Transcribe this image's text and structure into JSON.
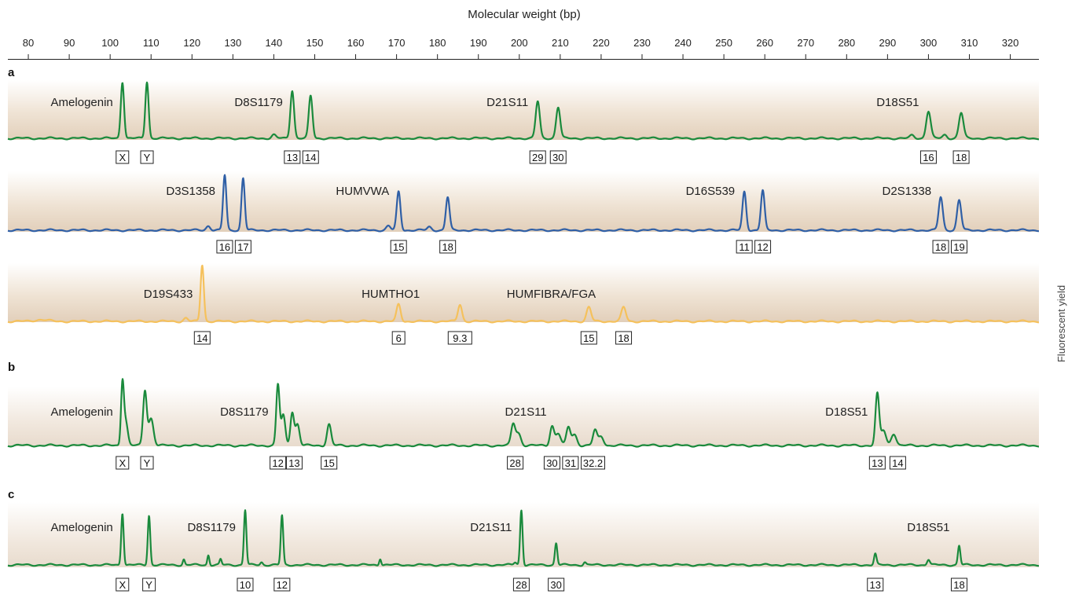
{
  "chart_data": {
    "type": "line",
    "title": "",
    "xlabel": "Molecular weight (bp)",
    "ylabel": "Fluorescent yield",
    "xlim": [
      75,
      327
    ],
    "xticks": [
      80,
      90,
      100,
      110,
      120,
      130,
      140,
      150,
      160,
      170,
      180,
      190,
      200,
      210,
      220,
      230,
      240,
      250,
      260,
      270,
      280,
      290,
      300,
      310,
      320
    ],
    "grid": false,
    "panels": [
      {
        "label": "a",
        "tracks": [
          {
            "color": "#1a8a3c",
            "band_color": "#e6d3bd",
            "peaks": [
              [
                103,
                1.0,
                0.4
              ],
              [
                109,
                1.0,
                0.4
              ],
              [
                140,
                0.06,
                0.5
              ],
              [
                144.5,
                0.85,
                0.45
              ],
              [
                149,
                0.75,
                0.45
              ],
              [
                204.5,
                0.65,
                0.5
              ],
              [
                209.5,
                0.55,
                0.5
              ],
              [
                296,
                0.05,
                0.5
              ],
              [
                300,
                0.48,
                0.55
              ],
              [
                304,
                0.06,
                0.5
              ],
              [
                308,
                0.45,
                0.55
              ]
            ],
            "loci": [
              {
                "name": "Amelogenin",
                "x": 103
              },
              {
                "name": "D8S1179",
                "x": 144.5
              },
              {
                "name": "D21S11",
                "x": 204.5
              },
              {
                "name": "D18S51",
                "x": 300
              }
            ],
            "alleles": [
              {
                "text": "X",
                "x": 103
              },
              {
                "text": "Y",
                "x": 109
              },
              {
                "text": "13",
                "x": 144.5
              },
              {
                "text": "14",
                "x": 149
              },
              {
                "text": "29",
                "x": 204.5
              },
              {
                "text": "30",
                "x": 209.5
              },
              {
                "text": "16",
                "x": 300
              },
              {
                "text": "18",
                "x": 308
              }
            ]
          },
          {
            "color": "#2f5fa6",
            "band_color": "#e6d3bd",
            "peaks": [
              [
                124,
                0.08,
                0.5
              ],
              [
                128,
                1.0,
                0.4
              ],
              [
                132.5,
                0.95,
                0.4
              ],
              [
                168,
                0.08,
                0.5
              ],
              [
                170.5,
                0.7,
                0.45
              ],
              [
                178,
                0.06,
                0.5
              ],
              [
                182.5,
                0.6,
                0.45
              ],
              [
                255,
                0.7,
                0.45
              ],
              [
                259.5,
                0.72,
                0.45
              ],
              [
                303,
                0.6,
                0.5
              ],
              [
                307.5,
                0.55,
                0.5
              ]
            ],
            "loci": [
              {
                "name": "D3S1358",
                "x": 128
              },
              {
                "name": "HUMVWA",
                "x": 170.5
              },
              {
                "name": "D16S539",
                "x": 255
              },
              {
                "name": "D2S1338",
                "x": 303
              }
            ],
            "alleles": [
              {
                "text": "16",
                "x": 128
              },
              {
                "text": "17",
                "x": 132.5
              },
              {
                "text": "15",
                "x": 170.5
              },
              {
                "text": "18",
                "x": 182.5
              },
              {
                "text": "11",
                "x": 255
              },
              {
                "text": "12",
                "x": 259.5
              },
              {
                "text": "18",
                "x": 303
              },
              {
                "text": "19",
                "x": 307.5
              }
            ]
          },
          {
            "color": "#f5c15c",
            "band_color": "#e6d3bd",
            "peaks": [
              [
                83,
                0.03,
                1.5
              ],
              [
                118.5,
                0.06,
                0.5
              ],
              [
                122.5,
                1.0,
                0.4
              ],
              [
                170.5,
                0.3,
                0.5
              ],
              [
                185.5,
                0.3,
                0.5
              ],
              [
                217,
                0.25,
                0.55
              ],
              [
                225.5,
                0.25,
                0.55
              ]
            ],
            "loci": [
              {
                "name": "D19S433",
                "x": 122.5
              },
              {
                "name": "HUMTHO1",
                "x": 178
              },
              {
                "name": "HUMFIBRA/FGA",
                "x": 221
              }
            ],
            "alleles": [
              {
                "text": "14",
                "x": 122.5
              },
              {
                "text": "6",
                "x": 170.5
              },
              {
                "text": "9.3",
                "x": 185.5
              },
              {
                "text": "15",
                "x": 217
              },
              {
                "text": "18",
                "x": 225.5
              }
            ]
          }
        ]
      },
      {
        "label": "b",
        "tracks": [
          {
            "color": "#1a8a3c",
            "band_color": "#e9ddd1",
            "peaks": [
              [
                103,
                1.0,
                0.35
              ],
              [
                103.8,
                0.4,
                0.5
              ],
              [
                108.5,
                0.9,
                0.45
              ],
              [
                110,
                0.45,
                0.6
              ],
              [
                141,
                1.0,
                0.4
              ],
              [
                142.3,
                0.5,
                0.5
              ],
              [
                144.5,
                0.55,
                0.45
              ],
              [
                145.8,
                0.35,
                0.5
              ],
              [
                153.5,
                0.35,
                0.5
              ],
              [
                198.5,
                0.35,
                0.5
              ],
              [
                199.8,
                0.2,
                0.6
              ],
              [
                208,
                0.32,
                0.5
              ],
              [
                209.5,
                0.2,
                0.6
              ],
              [
                212,
                0.3,
                0.5
              ],
              [
                213.5,
                0.18,
                0.6
              ],
              [
                218.5,
                0.25,
                0.5
              ],
              [
                220,
                0.15,
                0.6
              ],
              [
                287.5,
                0.85,
                0.45
              ],
              [
                289,
                0.25,
                0.6
              ],
              [
                291.5,
                0.2,
                0.6
              ]
            ],
            "loci": [
              {
                "name": "Amelogenin",
                "x": 103
              },
              {
                "name": "D8S1179",
                "x": 141
              },
              {
                "name": "D21S11",
                "x": 209
              },
              {
                "name": "D18S51",
                "x": 287.5
              }
            ],
            "alleles": [
              {
                "text": "X",
                "x": 103
              },
              {
                "text": "Y",
                "x": 109
              },
              {
                "text": "12",
                "x": 141
              },
              {
                "text": "13",
                "x": 145
              },
              {
                "text": "15",
                "x": 153.5
              },
              {
                "text": "28",
                "x": 199
              },
              {
                "text": "30",
                "x": 208
              },
              {
                "text": "31",
                "x": 212.5
              },
              {
                "text": "32.2",
                "x": 218
              },
              {
                "text": "13",
                "x": 287.5
              },
              {
                "text": "14",
                "x": 292.5
              }
            ]
          }
        ]
      },
      {
        "label": "c",
        "tracks": [
          {
            "color": "#1a8a3c",
            "band_color": "#e9ddd1",
            "peaks": [
              [
                103,
                0.95,
                0.3
              ],
              [
                109.5,
                0.9,
                0.3
              ],
              [
                118,
                0.1,
                0.25
              ],
              [
                124,
                0.18,
                0.25
              ],
              [
                127,
                0.1,
                0.25
              ],
              [
                133,
                1.0,
                0.3
              ],
              [
                137,
                0.05,
                0.3
              ],
              [
                142,
                0.9,
                0.3
              ],
              [
                166,
                0.12,
                0.25
              ],
              [
                199,
                0.05,
                0.35
              ],
              [
                200.5,
                1.0,
                0.3
              ],
              [
                209,
                0.4,
                0.3
              ],
              [
                216,
                0.05,
                0.3
              ],
              [
                287,
                0.2,
                0.3
              ],
              [
                300,
                0.1,
                0.35
              ],
              [
                307.5,
                0.35,
                0.3
              ]
            ],
            "loci": [
              {
                "name": "Amelogenin",
                "x": 103
              },
              {
                "name": "D8S1179",
                "x": 133
              },
              {
                "name": "D21S11",
                "x": 200.5
              },
              {
                "name": "D18S51",
                "x": 307.5
              }
            ],
            "alleles": [
              {
                "text": "X",
                "x": 103
              },
              {
                "text": "Y",
                "x": 109.5
              },
              {
                "text": "10",
                "x": 133
              },
              {
                "text": "12",
                "x": 142
              },
              {
                "text": "28",
                "x": 200.5
              },
              {
                "text": "30",
                "x": 209
              },
              {
                "text": "13",
                "x": 287
              },
              {
                "text": "18",
                "x": 307.5
              }
            ]
          }
        ]
      }
    ]
  }
}
